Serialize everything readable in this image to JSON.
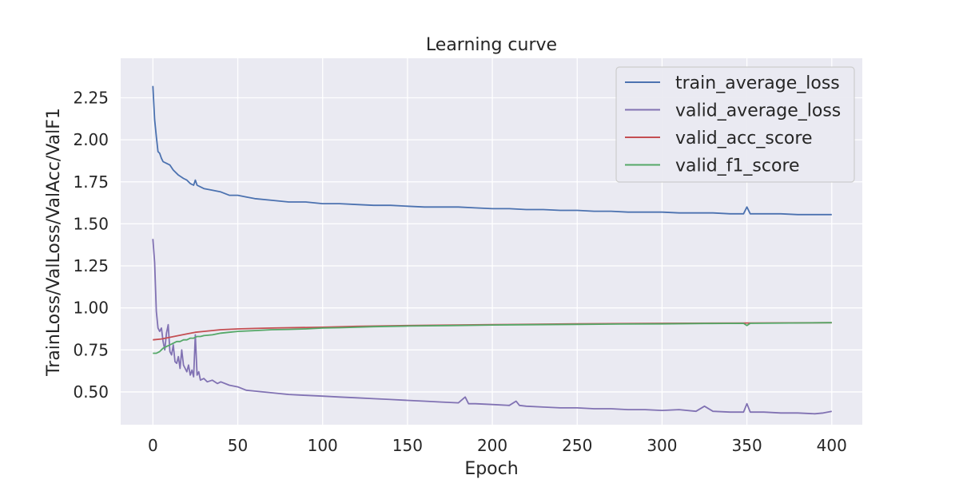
{
  "chart_data": {
    "type": "line",
    "title": "Learning curve",
    "xlabel": "Epoch",
    "ylabel": "TrainLoss/ValLoss/ValAcc/ValF1",
    "xlim": [
      -19,
      418
    ],
    "ylim": [
      0.305,
      2.485
    ],
    "xticks": [
      0,
      50,
      100,
      150,
      200,
      250,
      300,
      350,
      400
    ],
    "yticks": [
      0.5,
      0.75,
      1.0,
      1.25,
      1.5,
      1.75,
      2.0,
      2.25
    ],
    "xtick_labels": [
      "0",
      "50",
      "100",
      "150",
      "200",
      "250",
      "300",
      "350",
      "400"
    ],
    "ytick_labels": [
      "0.50",
      "0.75",
      "1.00",
      "1.25",
      "1.50",
      "1.75",
      "2.00",
      "2.25"
    ],
    "grid": true,
    "legend": "top-right",
    "series": [
      {
        "name": "train_average_loss",
        "color": "#4c72b0",
        "x": [
          0,
          1,
          2,
          3,
          4,
          5,
          6,
          8,
          10,
          12,
          15,
          18,
          20,
          22,
          24,
          25,
          26,
          28,
          30,
          35,
          40,
          45,
          50,
          55,
          60,
          70,
          80,
          90,
          100,
          110,
          120,
          130,
          140,
          150,
          160,
          170,
          180,
          190,
          200,
          210,
          220,
          230,
          240,
          250,
          260,
          270,
          280,
          290,
          300,
          310,
          320,
          330,
          340,
          348,
          350,
          352,
          360,
          370,
          380,
          390,
          400
        ],
        "y": [
          2.32,
          2.12,
          2.02,
          1.93,
          1.92,
          1.89,
          1.87,
          1.86,
          1.85,
          1.82,
          1.79,
          1.77,
          1.76,
          1.74,
          1.73,
          1.76,
          1.73,
          1.72,
          1.71,
          1.7,
          1.69,
          1.67,
          1.67,
          1.66,
          1.65,
          1.64,
          1.63,
          1.63,
          1.62,
          1.62,
          1.615,
          1.61,
          1.61,
          1.605,
          1.6,
          1.6,
          1.6,
          1.595,
          1.59,
          1.59,
          1.585,
          1.585,
          1.58,
          1.58,
          1.575,
          1.575,
          1.57,
          1.57,
          1.57,
          1.565,
          1.565,
          1.565,
          1.56,
          1.56,
          1.6,
          1.56,
          1.56,
          1.56,
          1.555,
          1.555,
          1.555
        ]
      },
      {
        "name": "valid_average_loss",
        "color": "#8172b3",
        "x": [
          0,
          1,
          2,
          3,
          4,
          5,
          6,
          7,
          8,
          9,
          10,
          11,
          12,
          13,
          14,
          15,
          16,
          17,
          18,
          19,
          20,
          21,
          22,
          23,
          24,
          25,
          26,
          27,
          28,
          30,
          32,
          35,
          38,
          40,
          45,
          50,
          55,
          60,
          70,
          80,
          90,
          100,
          110,
          120,
          130,
          140,
          150,
          160,
          170,
          180,
          184,
          186,
          190,
          200,
          210,
          214,
          216,
          220,
          230,
          240,
          250,
          260,
          270,
          280,
          290,
          300,
          310,
          320,
          325,
          330,
          340,
          348,
          350,
          352,
          360,
          370,
          380,
          390,
          395,
          400
        ],
        "y": [
          1.41,
          1.27,
          0.98,
          0.88,
          0.86,
          0.88,
          0.8,
          0.75,
          0.85,
          0.9,
          0.74,
          0.72,
          0.78,
          0.68,
          0.67,
          0.71,
          0.64,
          0.75,
          0.66,
          0.64,
          0.62,
          0.66,
          0.6,
          0.63,
          0.59,
          0.84,
          0.6,
          0.62,
          0.57,
          0.58,
          0.56,
          0.57,
          0.55,
          0.56,
          0.54,
          0.53,
          0.51,
          0.505,
          0.495,
          0.485,
          0.48,
          0.475,
          0.47,
          0.465,
          0.46,
          0.455,
          0.45,
          0.445,
          0.44,
          0.435,
          0.47,
          0.43,
          0.43,
          0.425,
          0.42,
          0.445,
          0.42,
          0.415,
          0.41,
          0.405,
          0.405,
          0.4,
          0.4,
          0.395,
          0.395,
          0.39,
          0.395,
          0.385,
          0.415,
          0.385,
          0.38,
          0.38,
          0.43,
          0.38,
          0.38,
          0.375,
          0.375,
          0.37,
          0.375,
          0.385
        ]
      },
      {
        "name": "valid_acc_score",
        "color": "#c44e52",
        "x": [
          0,
          5,
          10,
          15,
          20,
          25,
          30,
          40,
          50,
          60,
          70,
          80,
          100,
          120,
          150,
          200,
          250,
          300,
          350,
          400
        ],
        "y": [
          0.81,
          0.815,
          0.825,
          0.835,
          0.845,
          0.855,
          0.86,
          0.87,
          0.875,
          0.878,
          0.88,
          0.882,
          0.885,
          0.89,
          0.895,
          0.9,
          0.905,
          0.908,
          0.91,
          0.912
        ]
      },
      {
        "name": "valid_f1_score",
        "color": "#55a868",
        "x": [
          0,
          2,
          4,
          6,
          8,
          10,
          12,
          14,
          16,
          18,
          20,
          22,
          24,
          26,
          28,
          30,
          35,
          40,
          45,
          50,
          60,
          70,
          80,
          90,
          100,
          110,
          120,
          130,
          140,
          150,
          175,
          200,
          225,
          250,
          275,
          300,
          325,
          348,
          350,
          352,
          375,
          400
        ],
        "y": [
          0.73,
          0.73,
          0.74,
          0.76,
          0.77,
          0.78,
          0.79,
          0.8,
          0.8,
          0.81,
          0.81,
          0.82,
          0.82,
          0.83,
          0.83,
          0.835,
          0.84,
          0.85,
          0.855,
          0.86,
          0.865,
          0.87,
          0.872,
          0.875,
          0.88,
          0.882,
          0.885,
          0.888,
          0.89,
          0.892,
          0.895,
          0.898,
          0.9,
          0.902,
          0.904,
          0.905,
          0.907,
          0.908,
          0.895,
          0.908,
          0.91,
          0.912
        ]
      }
    ]
  }
}
